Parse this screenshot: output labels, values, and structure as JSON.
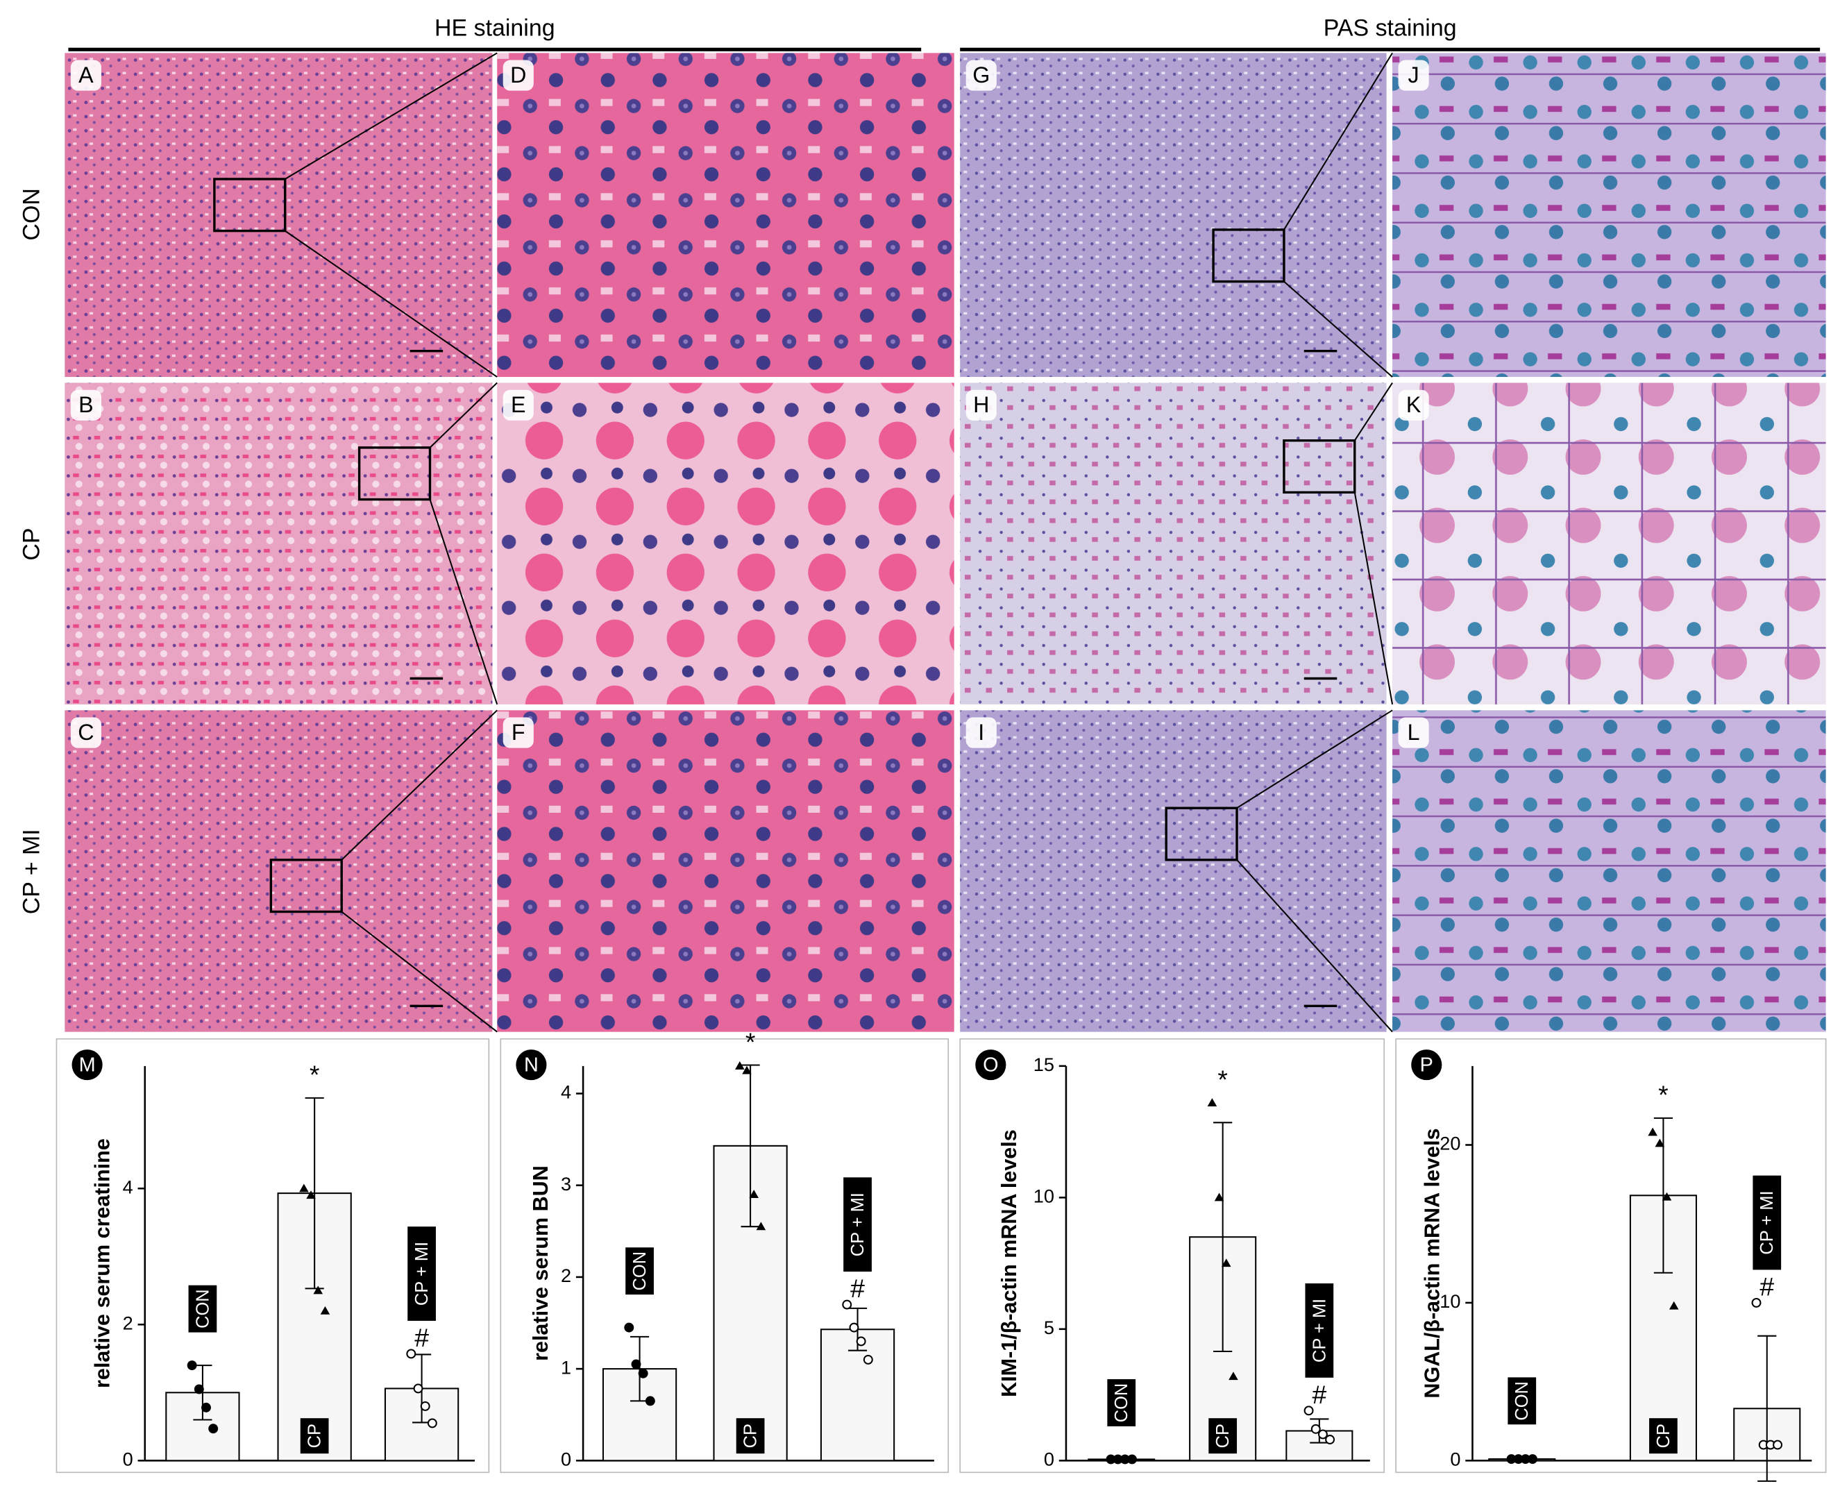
{
  "figure": {
    "headers": [
      "HE staining",
      "PAS staining"
    ],
    "row_labels": [
      "CON",
      "CP",
      "CP + MI"
    ],
    "panels": [
      "A",
      "B",
      "C",
      "D",
      "E",
      "F",
      "G",
      "H",
      "I",
      "J",
      "K",
      "L"
    ]
  },
  "chart_data": [
    {
      "type": "bar",
      "letter": "M",
      "ylabel": "relative serum creatinine",
      "categories": [
        "CON",
        "CP",
        "CP + MI"
      ],
      "values": [
        1.0,
        3.93,
        1.06
      ],
      "errors": [
        0.4,
        1.4,
        0.5
      ],
      "points": [
        [
          1.4,
          1.05,
          0.78,
          0.47
        ],
        [
          4.0,
          3.9,
          2.5,
          2.2
        ],
        [
          1.57,
          1.06,
          0.8,
          0.55
        ]
      ],
      "annotations": [
        {
          "x": "CP",
          "text": "*"
        },
        {
          "x": "CP + MI",
          "text": "#"
        }
      ],
      "ylim": [
        0,
        5.8
      ],
      "yticks": [
        0,
        2,
        4
      ],
      "color": "#f7f7f7"
    },
    {
      "type": "bar",
      "letter": "N",
      "ylabel": "relative serum BUN",
      "categories": [
        "CON",
        "CP",
        "CP + MI"
      ],
      "values": [
        1.0,
        3.43,
        1.43
      ],
      "errors": [
        0.35,
        0.88,
        0.23
      ],
      "points": [
        [
          1.45,
          1.05,
          0.95,
          0.65
        ],
        [
          4.3,
          4.25,
          2.9,
          2.55
        ],
        [
          1.7,
          1.45,
          1.3,
          1.1
        ]
      ],
      "annotations": [
        {
          "x": "CP",
          "text": "*"
        },
        {
          "x": "CP + MI",
          "text": "#"
        }
      ],
      "ylim": [
        0,
        4.3
      ],
      "yticks": [
        0,
        1,
        2,
        3,
        4
      ],
      "color": "#f7f7f7"
    },
    {
      "type": "bar",
      "letter": "O",
      "ylabel": "KIM-1/β-actin mRNA levels",
      "categories": [
        "CON",
        "CP",
        "CP + MI"
      ],
      "values": [
        0.05,
        8.5,
        1.13
      ],
      "errors": [
        0,
        4.35,
        0.45
      ],
      "points": [
        [
          0.05,
          0.05,
          0.05,
          0.05
        ],
        [
          13.6,
          10,
          7.5,
          3.2
        ],
        [
          1.9,
          1.2,
          1.0,
          0.8
        ]
      ],
      "annotations": [
        {
          "x": "CP",
          "text": "*"
        },
        {
          "x": "CP + MI",
          "text": "#"
        }
      ],
      "ylim": [
        0,
        15
      ],
      "yticks": [
        0,
        5,
        10,
        15
      ],
      "color": "#f7f7f7"
    },
    {
      "type": "bar",
      "letter": "P",
      "ylabel": "NGAL/β-actin mRNA levels",
      "categories": [
        "CON",
        "CP",
        "CP + MI"
      ],
      "values": [
        0.1,
        16.8,
        3.3
      ],
      "errors": [
        0.1,
        4.9,
        4.6
      ],
      "points": [
        [
          0.1,
          0.1,
          0.1,
          0.1
        ],
        [
          20.8,
          20.1,
          16.7,
          9.8
        ],
        [
          10,
          1,
          1,
          1
        ]
      ],
      "annotations": [
        {
          "x": "CP",
          "text": "*"
        },
        {
          "x": "CP + MI",
          "text": "#"
        }
      ],
      "ylim": [
        0,
        25
      ],
      "yticks": [
        0,
        10,
        20
      ],
      "color": "#f7f7f7"
    }
  ]
}
